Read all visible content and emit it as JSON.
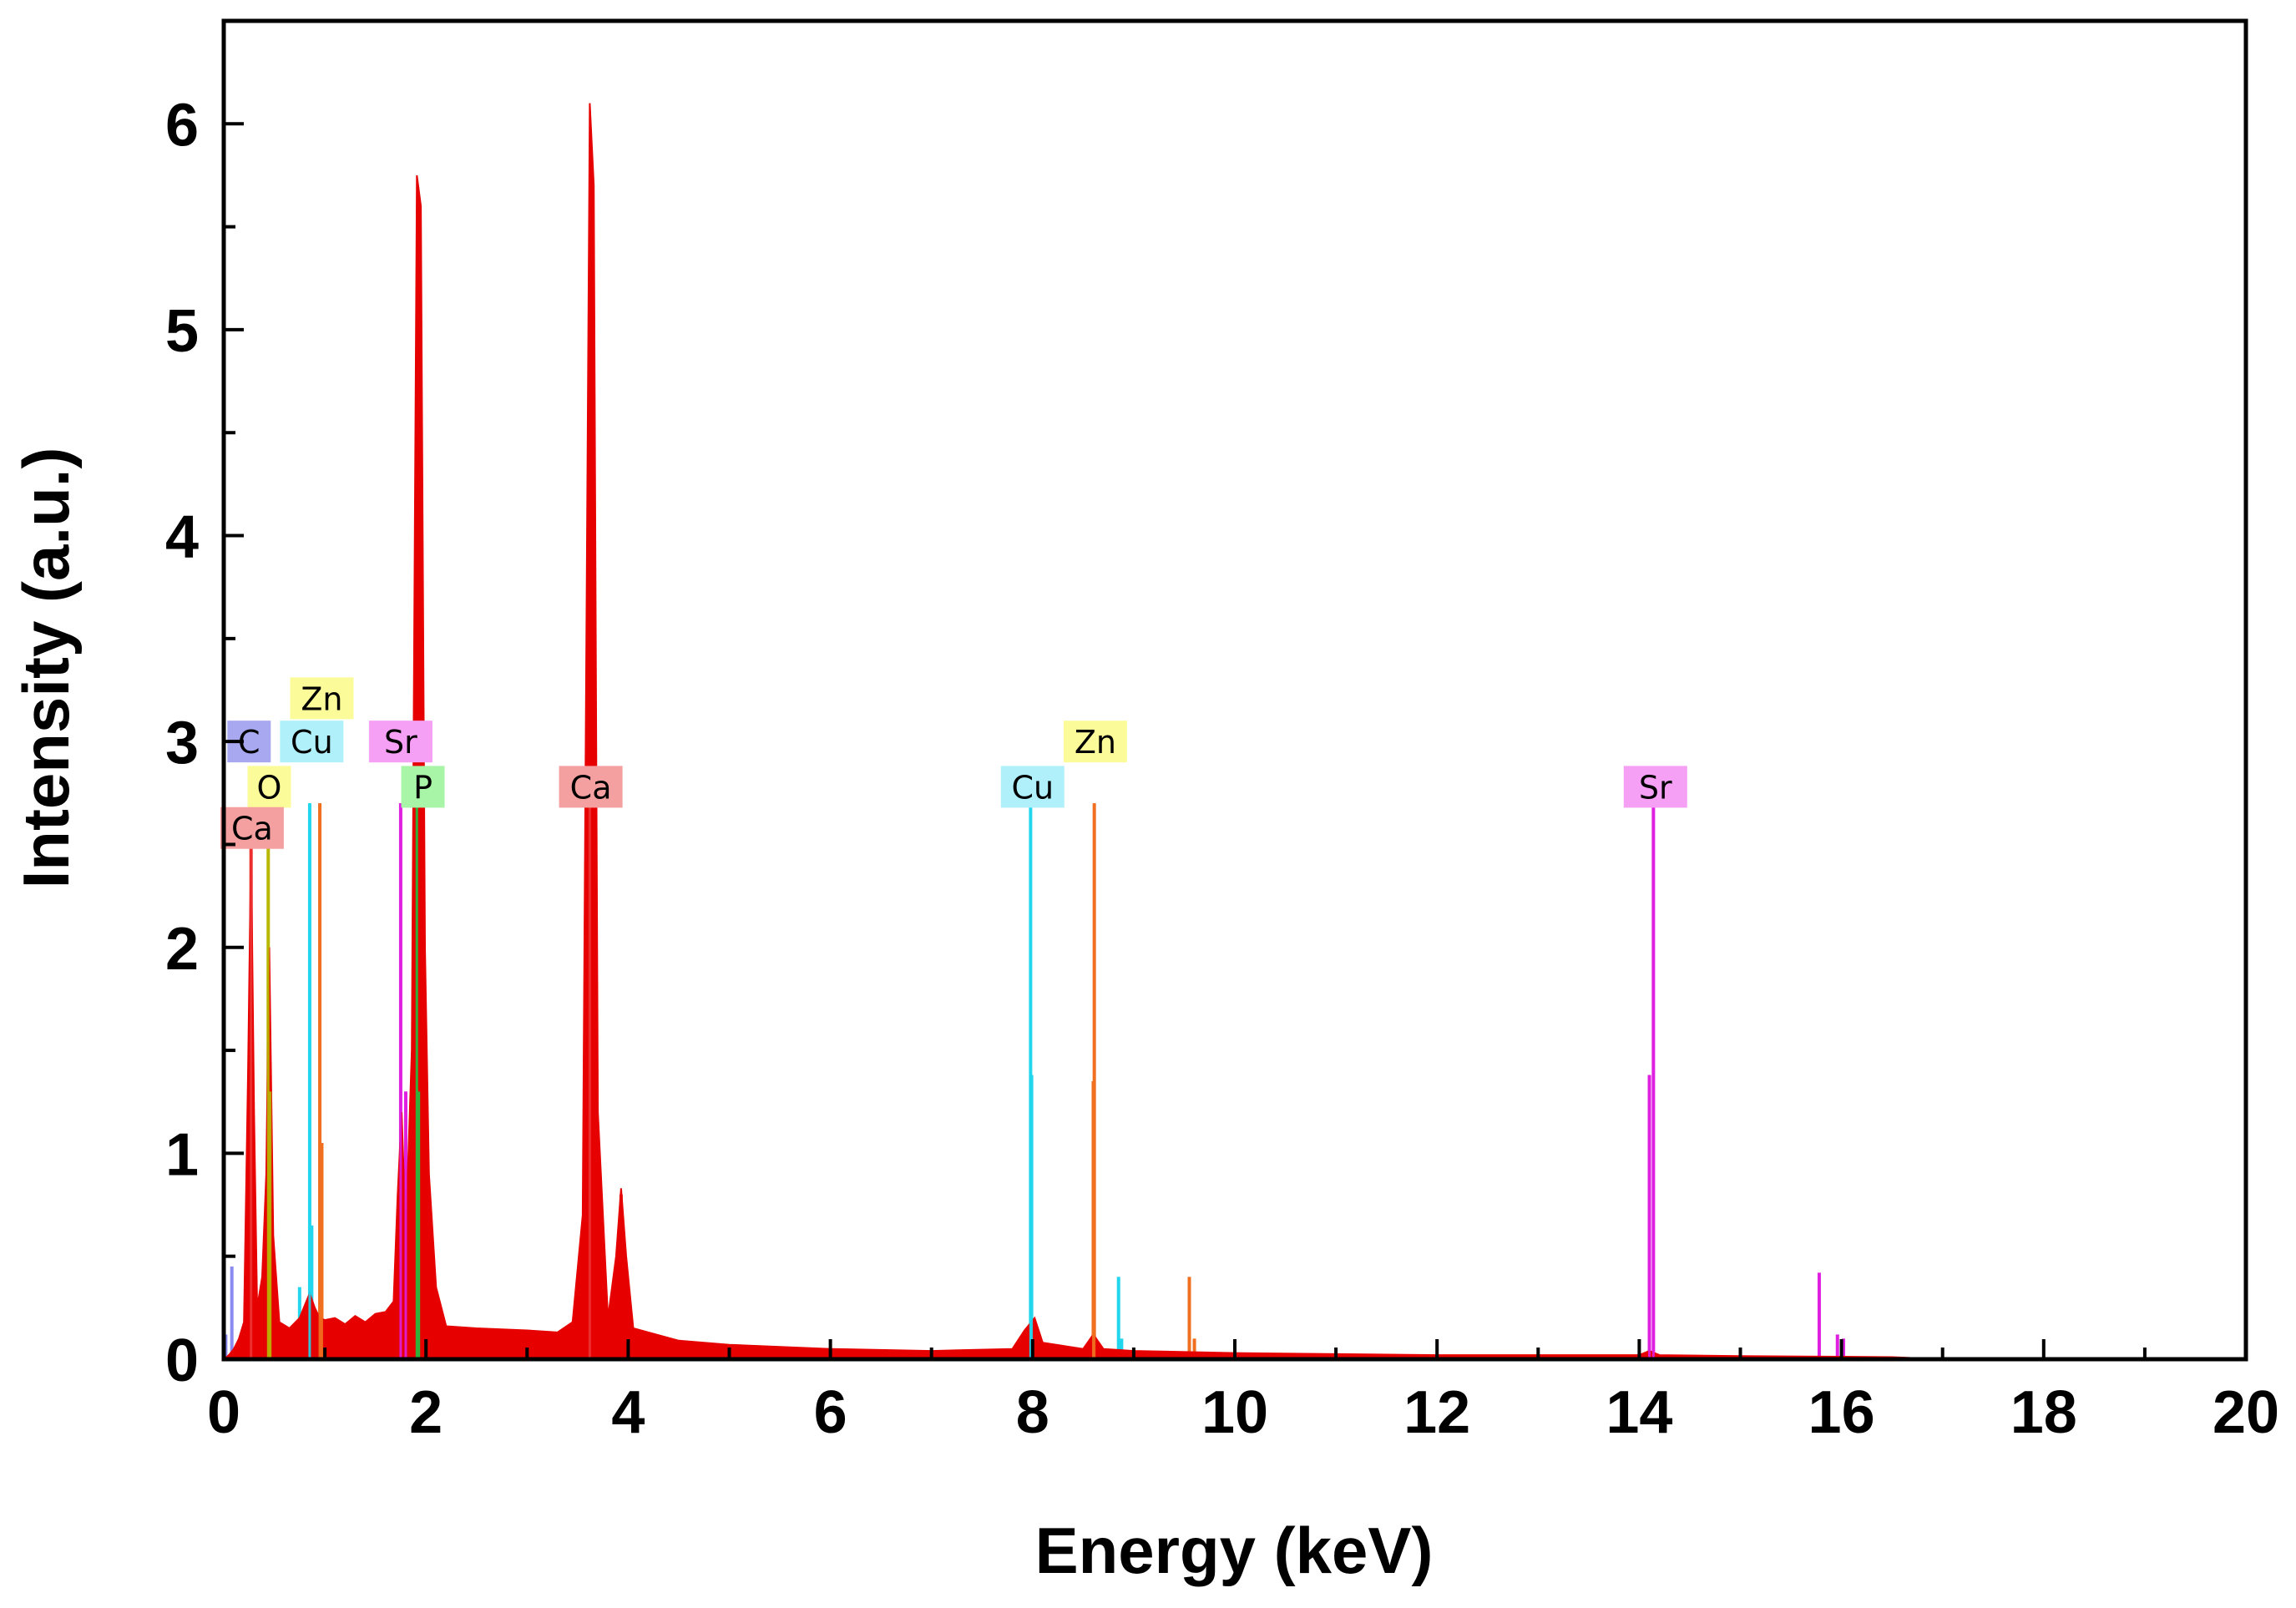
{
  "chart_data": {
    "type": "line",
    "xlabel": "Energy (keV)",
    "ylabel": "Intensity (a.u.)",
    "xlim": [
      0,
      20
    ],
    "ylim": [
      0,
      6.5
    ],
    "x_ticks": [
      "0",
      "2",
      "4",
      "6",
      "8",
      "10",
      "12",
      "14",
      "16",
      "18",
      "20"
    ],
    "y_ticks": [
      "0",
      "1",
      "2",
      "3",
      "4",
      "5",
      "6"
    ],
    "grid": false,
    "spectrum": {
      "color": "#e60000",
      "points": [
        [
          0.0,
          0.0
        ],
        [
          0.05,
          0.02
        ],
        [
          0.1,
          0.05
        ],
        [
          0.15,
          0.1
        ],
        [
          0.2,
          0.18
        ],
        [
          0.24,
          1.4
        ],
        [
          0.27,
          2.5
        ],
        [
          0.3,
          1.2
        ],
        [
          0.33,
          0.25
        ],
        [
          0.38,
          0.4
        ],
        [
          0.42,
          0.9
        ],
        [
          0.45,
          2.0
        ],
        [
          0.49,
          0.6
        ],
        [
          0.55,
          0.18
        ],
        [
          0.65,
          0.15
        ],
        [
          0.75,
          0.2
        ],
        [
          0.85,
          0.32
        ],
        [
          0.9,
          0.25
        ],
        [
          0.95,
          0.2
        ],
        [
          1.0,
          0.19
        ],
        [
          1.1,
          0.2
        ],
        [
          1.2,
          0.17
        ],
        [
          1.3,
          0.21
        ],
        [
          1.4,
          0.18
        ],
        [
          1.5,
          0.22
        ],
        [
          1.6,
          0.23
        ],
        [
          1.68,
          0.28
        ],
        [
          1.72,
          0.8
        ],
        [
          1.76,
          1.2
        ],
        [
          1.8,
          0.6
        ],
        [
          1.86,
          1.5
        ],
        [
          1.91,
          5.75
        ],
        [
          1.95,
          5.6
        ],
        [
          1.99,
          2.0
        ],
        [
          2.03,
          0.9
        ],
        [
          2.1,
          0.35
        ],
        [
          2.2,
          0.16
        ],
        [
          2.5,
          0.15
        ],
        [
          3.0,
          0.14
        ],
        [
          3.3,
          0.13
        ],
        [
          3.45,
          0.18
        ],
        [
          3.55,
          0.7
        ],
        [
          3.62,
          6.1
        ],
        [
          3.66,
          5.7
        ],
        [
          3.7,
          1.2
        ],
        [
          3.8,
          0.2
        ],
        [
          3.88,
          0.5
        ],
        [
          3.93,
          0.83
        ],
        [
          3.98,
          0.5
        ],
        [
          4.05,
          0.15
        ],
        [
          4.5,
          0.09
        ],
        [
          5.0,
          0.07
        ],
        [
          6.0,
          0.05
        ],
        [
          7.0,
          0.04
        ],
        [
          7.8,
          0.05
        ],
        [
          7.92,
          0.14
        ],
        [
          8.02,
          0.2
        ],
        [
          8.1,
          0.08
        ],
        [
          8.5,
          0.05
        ],
        [
          8.6,
          0.12
        ],
        [
          8.7,
          0.05
        ],
        [
          9.0,
          0.04
        ],
        [
          10.0,
          0.03
        ],
        [
          12.0,
          0.02
        ],
        [
          14.0,
          0.02
        ],
        [
          14.1,
          0.04
        ],
        [
          14.2,
          0.02
        ],
        [
          15.0,
          0.015
        ],
        [
          16.0,
          0.012
        ],
        [
          16.5,
          0.01
        ],
        [
          17.0,
          0.0
        ],
        [
          20.0,
          0.0
        ]
      ]
    },
    "elements": [
      {
        "name": "C",
        "color": "#8a8af0",
        "lines": [
          [
            0.08,
            0.45
          ],
          [
            0.02,
            0.12
          ]
        ]
      },
      {
        "name": "O",
        "color": "#b8b800",
        "lines": [
          [
            0.44,
            2.5
          ],
          [
            0.46,
            1.3
          ]
        ]
      },
      {
        "name": "Ca",
        "color": "#ee3333",
        "lines": [
          [
            0.27,
            2.5
          ],
          [
            0.24,
            0.7
          ],
          [
            3.62,
            2.7
          ],
          [
            3.93,
            0.8
          ]
        ]
      },
      {
        "name": "Cu",
        "color": "#22d6ee",
        "lines": [
          [
            0.85,
            2.7
          ],
          [
            0.87,
            0.65
          ],
          [
            0.75,
            0.35
          ],
          [
            7.98,
            2.7
          ],
          [
            7.99,
            1.38
          ],
          [
            8.85,
            0.4
          ],
          [
            8.88,
            0.1
          ]
        ]
      },
      {
        "name": "Zn",
        "color": "#f07020",
        "lines": [
          [
            0.95,
            2.7
          ],
          [
            0.97,
            1.05
          ],
          [
            1.03,
            0.1
          ],
          [
            8.61,
            2.7
          ],
          [
            8.6,
            1.35
          ],
          [
            9.55,
            0.4
          ],
          [
            9.6,
            0.1
          ]
        ]
      },
      {
        "name": "Sr",
        "color": "#e020e0",
        "lines": [
          [
            1.75,
            2.7
          ],
          [
            1.8,
            1.3
          ],
          [
            1.58,
            0.12
          ],
          [
            2.07,
            0.1
          ],
          [
            14.14,
            2.7
          ],
          [
            14.1,
            1.38
          ],
          [
            15.78,
            0.42
          ],
          [
            15.96,
            0.12
          ],
          [
            16.02,
            0.1
          ]
        ]
      },
      {
        "name": "P",
        "color": "#22c040",
        "lines": [
          [
            1.91,
            2.7
          ],
          [
            1.93,
            1.3
          ],
          [
            2.14,
            0.12
          ]
        ]
      }
    ],
    "annotations": [
      {
        "text": "C",
        "x": 0.25,
        "y": 3.0,
        "fill": "#a8a8f0"
      },
      {
        "text": "O",
        "x": 0.45,
        "y": 2.78,
        "fill": "#fbfb9a"
      },
      {
        "text": "Ca",
        "x": 0.28,
        "y": 2.58,
        "fill": "#f5a0a0"
      },
      {
        "text": "Zn",
        "x": 0.97,
        "y": 3.21,
        "fill": "#fbfb9a"
      },
      {
        "text": "Cu",
        "x": 0.87,
        "y": 3.0,
        "fill": "#b0f0fb"
      },
      {
        "text": "Sr",
        "x": 1.75,
        "y": 3.0,
        "fill": "#f5a0f5"
      },
      {
        "text": "P",
        "x": 1.97,
        "y": 2.78,
        "fill": "#a8f5a8"
      },
      {
        "text": "Ca",
        "x": 3.63,
        "y": 2.78,
        "fill": "#f5a0a0"
      },
      {
        "text": "Cu",
        "x": 8.0,
        "y": 2.78,
        "fill": "#b0f0fb"
      },
      {
        "text": "Zn",
        "x": 8.62,
        "y": 3.0,
        "fill": "#fbfb9a"
      },
      {
        "text": "Sr",
        "x": 14.16,
        "y": 2.78,
        "fill": "#f5a0f5"
      }
    ]
  }
}
